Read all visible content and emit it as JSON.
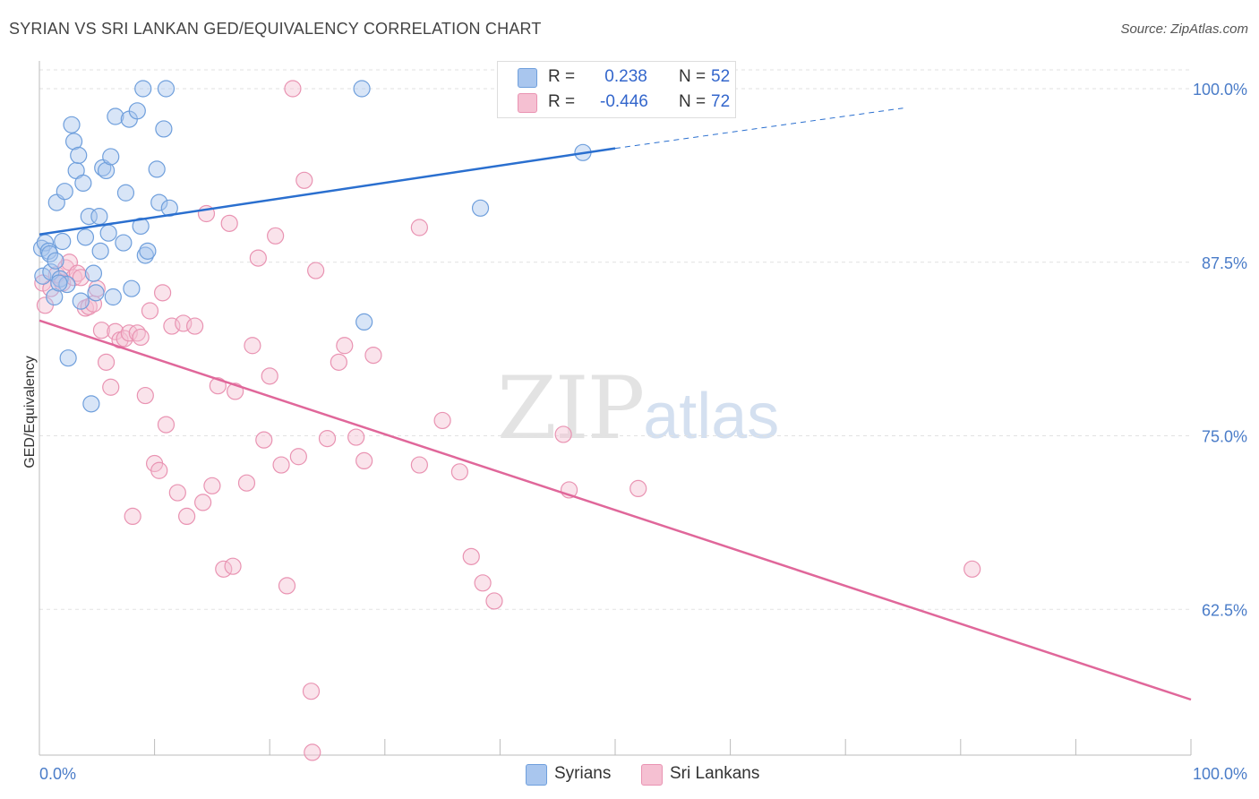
{
  "title": "SYRIAN VS SRI LANKAN GED/EQUIVALENCY CORRELATION CHART",
  "source": "Source: ZipAtlas.com",
  "watermark": {
    "zip": "ZIP",
    "atlas": "atlas"
  },
  "colors": {
    "blue": "#6f9fdc",
    "blue_fill": "#a9c6ee",
    "blue_line": "#2a6fcf",
    "pink": "#e993b2",
    "pink_fill": "#f5c0d2",
    "pink_line": "#e0679a",
    "tick_label": "#4a7cc8"
  },
  "legend": {
    "rows": [
      {
        "r_label": "R =",
        "r_value": " 0.238",
        "n_label": "N =",
        "n_value": "52"
      },
      {
        "r_label": "R =",
        "r_value": "-0.446",
        "n_label": "N =",
        "n_value": "72"
      }
    ]
  },
  "bottom_legend": {
    "syrians": "Syrians",
    "sri_lankans": "Sri Lankans"
  },
  "chart_data": {
    "type": "scatter",
    "title": "SYRIAN VS SRI LANKAN GED/EQUIVALENCY CORRELATION CHART",
    "xlabel": "",
    "ylabel": "GED/Equivalency",
    "xlim": [
      0,
      100
    ],
    "ylim": [
      52,
      102
    ],
    "x_tick_labels": [
      "0.0%",
      "100.0%"
    ],
    "y_ticks": [
      {
        "value": 100.0,
        "label": "100.0%"
      },
      {
        "value": 87.5,
        "label": "87.5%"
      },
      {
        "value": 75.0,
        "label": "75.0%"
      },
      {
        "value": 62.5,
        "label": "62.5%"
      }
    ],
    "grid": true,
    "series": [
      {
        "name": "Syrians",
        "r": 0.238,
        "n": 52,
        "trend": {
          "x0": 0,
          "y0": 89.5,
          "x1": 50,
          "y1": 95.7,
          "dash_to_x": 75,
          "dash_to_y": 98.6
        },
        "points": [
          [
            0.2,
            88.5
          ],
          [
            0.3,
            86.5
          ],
          [
            0.5,
            88.9
          ],
          [
            0.8,
            88.3
          ],
          [
            1.0,
            86.8
          ],
          [
            1.3,
            85.0
          ],
          [
            1.5,
            91.8
          ],
          [
            1.8,
            86.3
          ],
          [
            2.0,
            89.0
          ],
          [
            2.2,
            92.6
          ],
          [
            2.5,
            80.6
          ],
          [
            2.8,
            97.4
          ],
          [
            3.0,
            96.2
          ],
          [
            3.2,
            94.1
          ],
          [
            3.4,
            95.2
          ],
          [
            3.8,
            93.2
          ],
          [
            4.0,
            89.3
          ],
          [
            4.3,
            90.8
          ],
          [
            4.7,
            86.7
          ],
          [
            4.9,
            85.3
          ],
          [
            5.2,
            90.8
          ],
          [
            5.3,
            88.3
          ],
          [
            5.5,
            94.3
          ],
          [
            5.8,
            94.1
          ],
          [
            6.0,
            89.6
          ],
          [
            6.2,
            95.1
          ],
          [
            6.4,
            85.0
          ],
          [
            6.6,
            98.0
          ],
          [
            7.3,
            88.9
          ],
          [
            7.5,
            92.5
          ],
          [
            7.8,
            97.8
          ],
          [
            8.0,
            85.6
          ],
          [
            8.5,
            98.4
          ],
          [
            8.8,
            90.1
          ],
          [
            9.0,
            100.0
          ],
          [
            9.2,
            88.0
          ],
          [
            9.4,
            88.3
          ],
          [
            10.2,
            94.2
          ],
          [
            10.4,
            91.8
          ],
          [
            10.8,
            97.1
          ],
          [
            11.0,
            100.0
          ],
          [
            11.3,
            91.4
          ],
          [
            0.9,
            88.1
          ],
          [
            1.4,
            87.6
          ],
          [
            2.4,
            85.9
          ],
          [
            3.6,
            84.7
          ],
          [
            4.5,
            77.3
          ],
          [
            28.0,
            100.0
          ],
          [
            28.2,
            83.2
          ],
          [
            38.3,
            91.4
          ],
          [
            47.2,
            95.4
          ],
          [
            1.7,
            86.0
          ]
        ]
      },
      {
        "name": "Sri Lankans",
        "r": -0.446,
        "n": 72,
        "trend": {
          "x0": 0,
          "y0": 83.3,
          "x1": 100,
          "y1": 56.0
        },
        "points": [
          [
            0.3,
            86.0
          ],
          [
            0.5,
            84.4
          ],
          [
            1.0,
            85.6
          ],
          [
            1.5,
            86.6
          ],
          [
            2.0,
            86.0
          ],
          [
            2.3,
            87.1
          ],
          [
            2.6,
            87.5
          ],
          [
            3.0,
            86.4
          ],
          [
            3.3,
            86.7
          ],
          [
            3.6,
            86.4
          ],
          [
            4.0,
            84.2
          ],
          [
            4.3,
            84.3
          ],
          [
            4.7,
            84.5
          ],
          [
            5.0,
            85.6
          ],
          [
            5.4,
            82.6
          ],
          [
            5.8,
            80.3
          ],
          [
            6.2,
            78.5
          ],
          [
            6.6,
            82.5
          ],
          [
            7.0,
            81.9
          ],
          [
            7.4,
            82.0
          ],
          [
            7.8,
            82.4
          ],
          [
            8.1,
            69.2
          ],
          [
            8.5,
            82.4
          ],
          [
            8.8,
            82.1
          ],
          [
            9.2,
            77.9
          ],
          [
            9.6,
            84.0
          ],
          [
            10.0,
            73.0
          ],
          [
            10.4,
            72.5
          ],
          [
            10.7,
            85.3
          ],
          [
            11.0,
            75.8
          ],
          [
            11.5,
            82.9
          ],
          [
            12.0,
            70.9
          ],
          [
            12.5,
            83.1
          ],
          [
            12.8,
            69.2
          ],
          [
            13.5,
            82.9
          ],
          [
            14.2,
            70.2
          ],
          [
            14.5,
            91.0
          ],
          [
            15.0,
            71.4
          ],
          [
            15.5,
            78.6
          ],
          [
            16.0,
            65.4
          ],
          [
            16.5,
            90.3
          ],
          [
            16.8,
            65.6
          ],
          [
            17.0,
            78.2
          ],
          [
            18.0,
            71.6
          ],
          [
            18.5,
            81.5
          ],
          [
            19.0,
            87.8
          ],
          [
            19.5,
            74.7
          ],
          [
            20.0,
            79.3
          ],
          [
            20.5,
            89.4
          ],
          [
            21.0,
            72.9
          ],
          [
            21.5,
            64.2
          ],
          [
            22.0,
            100.0
          ],
          [
            22.5,
            73.5
          ],
          [
            23.0,
            93.4
          ],
          [
            23.6,
            56.6
          ],
          [
            24.0,
            86.9
          ],
          [
            25.0,
            74.8
          ],
          [
            26.0,
            80.3
          ],
          [
            26.5,
            81.5
          ],
          [
            27.5,
            74.9
          ],
          [
            28.2,
            73.2
          ],
          [
            29.0,
            80.8
          ],
          [
            33.0,
            90.0
          ],
          [
            33.0,
            72.9
          ],
          [
            35.0,
            76.1
          ],
          [
            36.5,
            72.4
          ],
          [
            37.5,
            66.3
          ],
          [
            38.5,
            64.4
          ],
          [
            39.5,
            63.1
          ],
          [
            45.5,
            75.1
          ],
          [
            46.0,
            71.1
          ],
          [
            52.0,
            71.2
          ]
        ],
        "extra_points": [
          [
            23.7,
            52.2
          ],
          [
            81.0,
            65.4
          ]
        ]
      }
    ]
  }
}
